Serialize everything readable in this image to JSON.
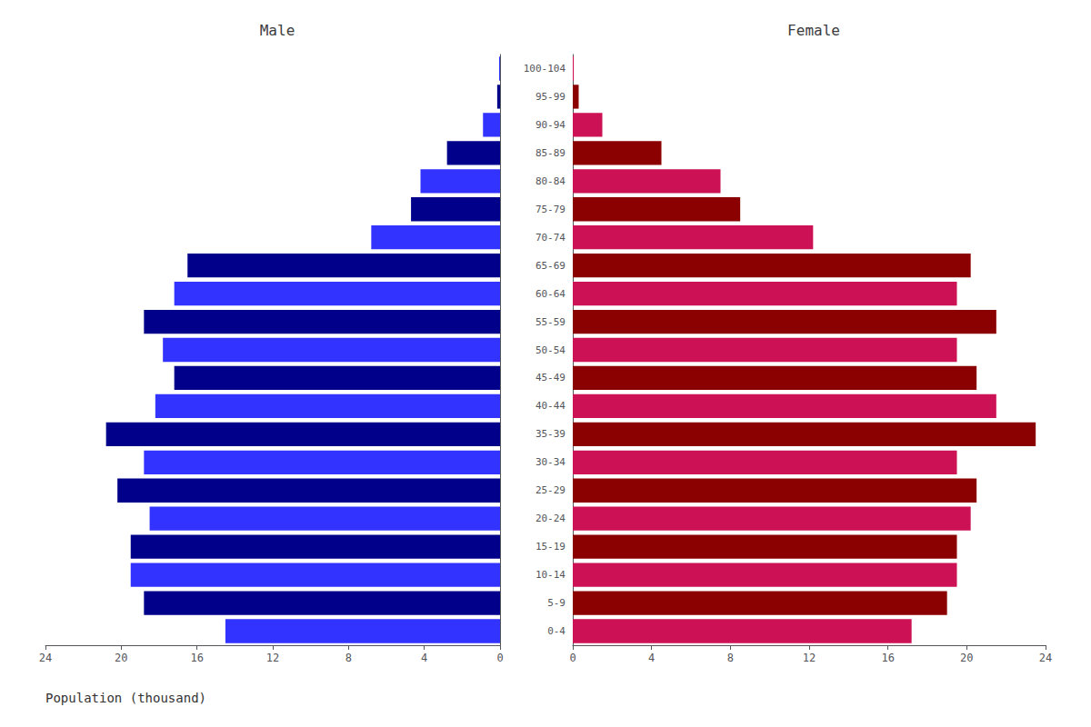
{
  "chart_data": [
    {
      "type": "bar",
      "orientation": "horizontal",
      "title": "Male",
      "xlabel": "Population (thousand)",
      "categories": [
        "100-104",
        "95-99",
        "90-94",
        "85-89",
        "80-84",
        "75-79",
        "70-74",
        "65-69",
        "60-64",
        "55-59",
        "50-54",
        "45-49",
        "40-44",
        "35-39",
        "30-34",
        "25-29",
        "20-24",
        "15-19",
        "10-14",
        "5-9",
        "0-4"
      ],
      "values": [
        0.05,
        0.15,
        0.9,
        2.8,
        4.2,
        4.7,
        6.8,
        16.5,
        17.2,
        18.8,
        17.8,
        17.2,
        18.2,
        20.8,
        18.8,
        20.2,
        18.5,
        19.5,
        19.5,
        18.8,
        14.5
      ],
      "colors": [
        "#3333FF",
        "#00008B",
        "#3333FF",
        "#00008B",
        "#3333FF",
        "#00008B",
        "#3333FF",
        "#00008B",
        "#3333FF",
        "#00008B",
        "#3333FF",
        "#00008B",
        "#3333FF",
        "#00008B",
        "#3333FF",
        "#00008B",
        "#3333FF",
        "#00008B",
        "#3333FF",
        "#00008B",
        "#3333FF"
      ],
      "xlim": [
        24,
        0
      ],
      "xticks": [
        24,
        20,
        16,
        12,
        8,
        4,
        0
      ],
      "grid": false,
      "tick_labels": "x"
    },
    {
      "type": "bar",
      "orientation": "horizontal",
      "title": "Female",
      "categories": [
        "100-104",
        "95-99",
        "90-94",
        "85-89",
        "80-84",
        "75-79",
        "70-74",
        "65-69",
        "60-64",
        "55-59",
        "50-54",
        "45-49",
        "40-44",
        "35-39",
        "30-34",
        "25-29",
        "20-24",
        "15-19",
        "10-14",
        "5-9",
        "0-4"
      ],
      "values": [
        0.05,
        0.3,
        1.5,
        4.5,
        7.5,
        8.5,
        12.2,
        20.2,
        19.5,
        21.5,
        19.5,
        20.5,
        21.5,
        23.5,
        19.5,
        20.5,
        20.2,
        19.5,
        19.5,
        19.0,
        17.2
      ],
      "colors": [
        "#CC1155",
        "#8B0000",
        "#CC1155",
        "#8B0000",
        "#CC1155",
        "#8B0000",
        "#CC1155",
        "#8B0000",
        "#CC1155",
        "#8B0000",
        "#CC1155",
        "#8B0000",
        "#CC1155",
        "#8B0000",
        "#CC1155",
        "#8B0000",
        "#CC1155",
        "#8B0000",
        "#CC1155",
        "#8B0000",
        "#CC1155"
      ],
      "xlim": [
        0,
        24
      ],
      "xticks": [
        0,
        4,
        8,
        12,
        16,
        20,
        24
      ],
      "grid": false
    }
  ]
}
